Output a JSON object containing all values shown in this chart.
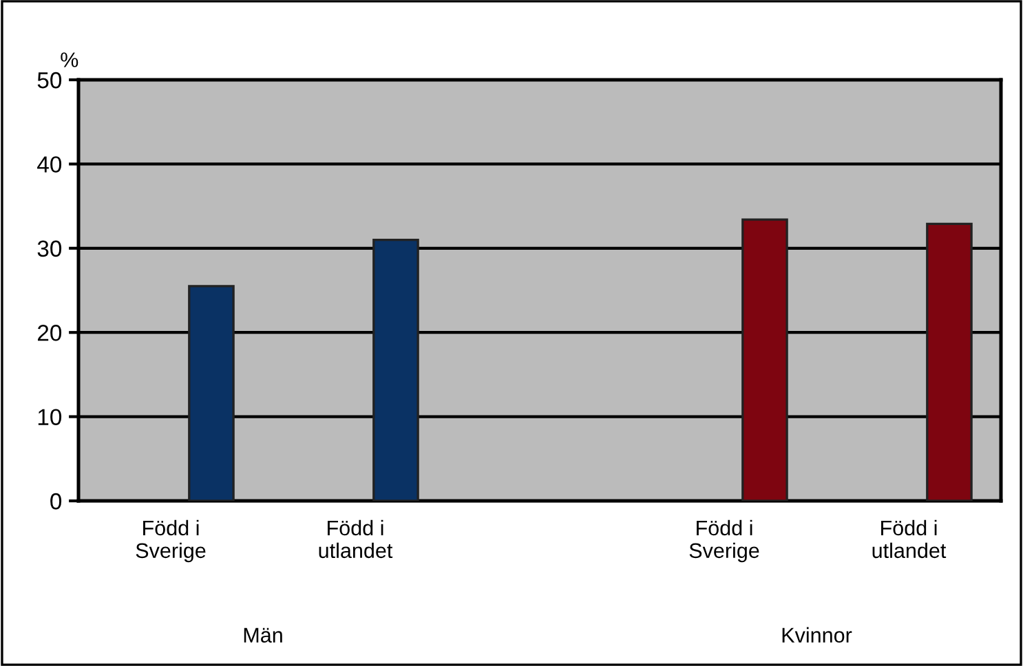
{
  "chart_data": {
    "type": "bar",
    "ylabel": "%",
    "categories": [
      "Född i\nSverige",
      "Född i\nutlandet",
      "Född i\nSverige",
      "Född i\nutlandet"
    ],
    "values": [
      25.5,
      31.0,
      33.4,
      32.9
    ],
    "colors": [
      "#0a3264",
      "#0a3264",
      "#7e0510",
      "#7e0510"
    ],
    "annotations": [
      "Män",
      "Kvinnor"
    ],
    "ylim": [
      0,
      50
    ],
    "yticks": [
      0,
      10,
      20,
      30,
      40,
      50
    ],
    "grid": "y"
  }
}
